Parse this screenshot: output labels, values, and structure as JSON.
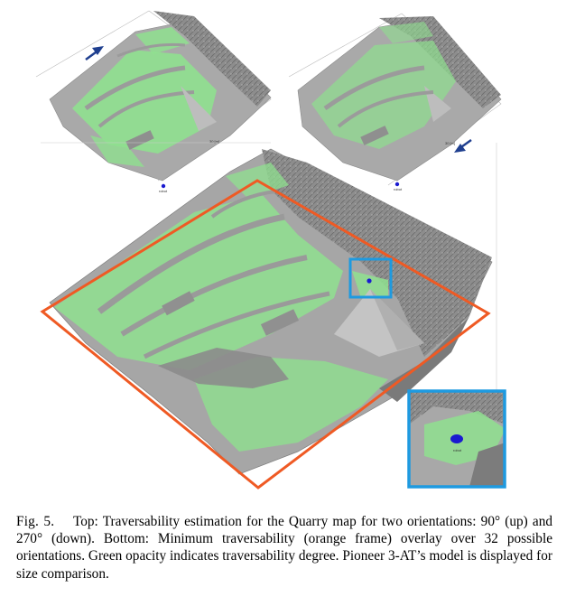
{
  "figure": {
    "colors": {
      "traversable": "#8fe08f",
      "terrain": "#a8a8a8",
      "terrain_dark": "#7c7c7c",
      "orange_frame": "#ef5a24",
      "zoom_box": "#1e9ae0",
      "robot": "#1a1ad0",
      "arrow": "#1f3f8f"
    },
    "orientation_up_label": "90° (up)",
    "orientation_down_label": "270° (down)",
    "top_left_scale": "30 [m]",
    "top_right_scale": "30 [m]",
    "top_left_robot_label": "robot",
    "top_right_robot_label": "robot",
    "zoom_robot_label": "robot"
  },
  "caption": {
    "label": "Fig. 5.",
    "text": "Top: Traversability estimation for the Quarry map for two orientations: 90° (up) and 270° (down). Bottom: Minimum traversability (orange frame) overlay over 32 possible orientations. Green opacity indicates traversability degree. Pioneer 3-AT’s model is displayed for size comparison."
  }
}
